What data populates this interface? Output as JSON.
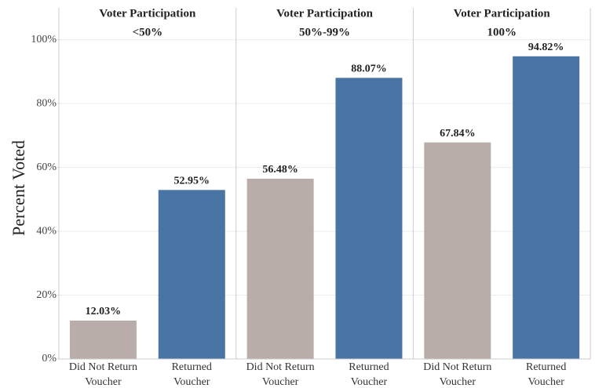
{
  "chart_data": [
    {
      "type": "bar",
      "title": "Voter Participation",
      "subtitle": "<50%",
      "y_label": "Percent Voted",
      "categories": [
        "Did Not Return Voucher",
        "Returned Voucher"
      ],
      "values": [
        12.03,
        52.95
      ],
      "value_labels": [
        "12.03%",
        "52.95%"
      ],
      "colors": [
        "#b8ada8",
        "#4975a5"
      ],
      "ylim": [
        0,
        110
      ],
      "yticks": [
        {
          "value": 0,
          "label": "0%"
        },
        {
          "value": 20,
          "label": "20%"
        },
        {
          "value": 40,
          "label": "40%"
        },
        {
          "value": 60,
          "label": "60%"
        },
        {
          "value": 80,
          "label": "80%"
        },
        {
          "value": 100,
          "label": "100%"
        }
      ],
      "grid": true
    },
    {
      "type": "bar",
      "title": "Voter Participation",
      "subtitle": "50%-99%",
      "categories": [
        "Did Not Return Voucher",
        "Returned Voucher"
      ],
      "values": [
        56.48,
        88.07
      ],
      "value_labels": [
        "56.48%",
        "88.07%"
      ],
      "colors": [
        "#b8ada8",
        "#4975a5"
      ]
    },
    {
      "type": "bar",
      "title": "Voter Participation",
      "subtitle": "100%",
      "categories": [
        "Did Not Return Voucher",
        "Returned Voucher"
      ],
      "values": [
        67.84,
        94.82
      ],
      "value_labels": [
        "67.84%",
        "94.82%"
      ],
      "colors": [
        "#b8ada8",
        "#4975a5"
      ]
    }
  ]
}
